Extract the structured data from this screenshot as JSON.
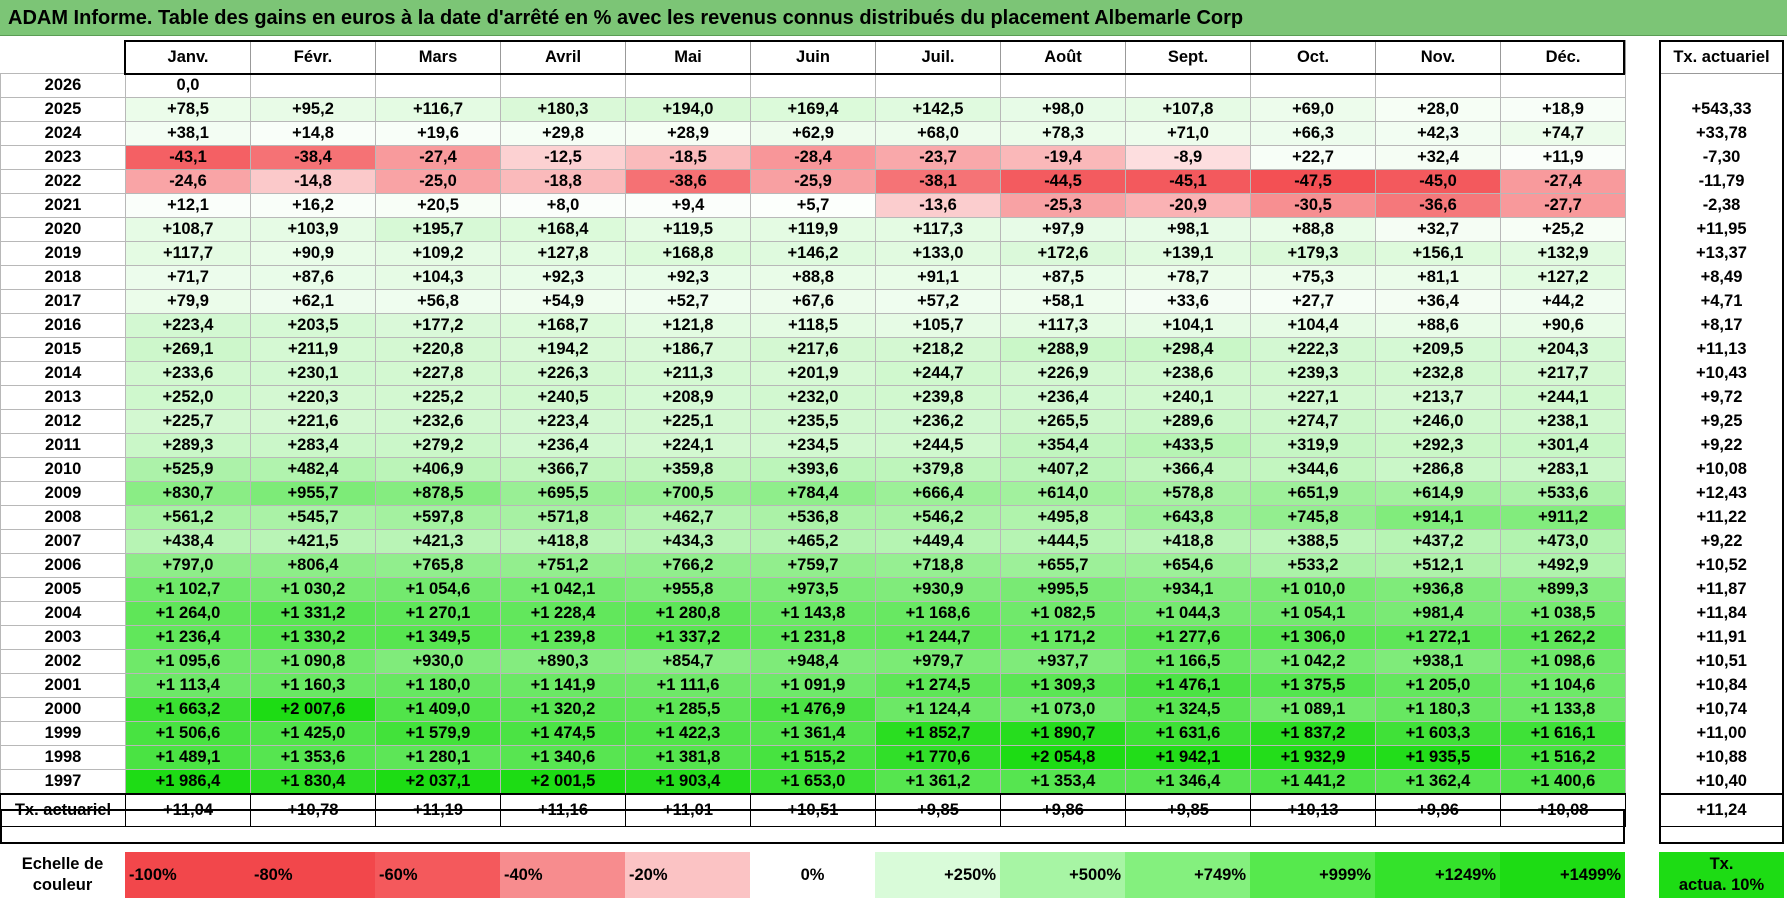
{
  "title": "ADAM Informe. Table des gains en euros à la date d'arrêté en % avec les revenus connus distribués du placement Albemarle Corp",
  "header": {
    "year_col": "",
    "months": [
      "Janv.",
      "Févr.",
      "Mars",
      "Avril",
      "Mai",
      "Juin",
      "Juil.",
      "Août",
      "Sept.",
      "Oct.",
      "Nov.",
      "Déc."
    ],
    "annual_label": "Tx. actuariel"
  },
  "rows": [
    {
      "year": "2026",
      "cells": [
        "0,0",
        "",
        "",
        "",
        "",
        "",
        "",
        "",
        "",
        "",
        "",
        ""
      ],
      "annual": ""
    },
    {
      "year": "2025",
      "cells": [
        "+78,5",
        "+95,2",
        "+116,7",
        "+180,3",
        "+194,0",
        "+169,4",
        "+142,5",
        "+98,0",
        "+107,8",
        "+69,0",
        "+28,0",
        "+18,9"
      ],
      "annual": "+543,33"
    },
    {
      "year": "2024",
      "cells": [
        "+38,1",
        "+14,8",
        "+19,6",
        "+29,8",
        "+28,9",
        "+62,9",
        "+68,0",
        "+78,3",
        "+71,0",
        "+66,3",
        "+42,3",
        "+74,7"
      ],
      "annual": "+33,78"
    },
    {
      "year": "2023",
      "cells": [
        "-43,1",
        "-38,4",
        "-27,4",
        "-12,5",
        "-18,5",
        "-28,4",
        "-23,7",
        "-19,4",
        "-8,9",
        "+22,7",
        "+32,4",
        "+11,9"
      ],
      "annual": "-7,30"
    },
    {
      "year": "2022",
      "cells": [
        "-24,6",
        "-14,8",
        "-25,0",
        "-18,8",
        "-38,6",
        "-25,9",
        "-38,1",
        "-44,5",
        "-45,1",
        "-47,5",
        "-45,0",
        "-27,4"
      ],
      "annual": "-11,79"
    },
    {
      "year": "2021",
      "cells": [
        "+12,1",
        "+16,2",
        "+20,5",
        "+8,0",
        "+9,4",
        "+5,7",
        "-13,6",
        "-25,3",
        "-20,9",
        "-30,5",
        "-36,6",
        "-27,7"
      ],
      "annual": "-2,38"
    },
    {
      "year": "2020",
      "cells": [
        "+108,7",
        "+103,9",
        "+195,7",
        "+168,4",
        "+119,5",
        "+119,9",
        "+117,3",
        "+97,9",
        "+98,1",
        "+88,8",
        "+32,7",
        "+25,2"
      ],
      "annual": "+11,95"
    },
    {
      "year": "2019",
      "cells": [
        "+117,7",
        "+90,9",
        "+109,2",
        "+127,8",
        "+168,8",
        "+146,2",
        "+133,0",
        "+172,6",
        "+139,1",
        "+179,3",
        "+156,1",
        "+132,9"
      ],
      "annual": "+13,37"
    },
    {
      "year": "2018",
      "cells": [
        "+71,7",
        "+87,6",
        "+104,3",
        "+92,3",
        "+92,3",
        "+88,8",
        "+91,1",
        "+87,5",
        "+78,7",
        "+75,3",
        "+81,1",
        "+127,2"
      ],
      "annual": "+8,49"
    },
    {
      "year": "2017",
      "cells": [
        "+79,9",
        "+62,1",
        "+56,8",
        "+54,9",
        "+52,7",
        "+67,6",
        "+57,2",
        "+58,1",
        "+33,6",
        "+27,7",
        "+36,4",
        "+44,2"
      ],
      "annual": "+4,71"
    },
    {
      "year": "2016",
      "cells": [
        "+223,4",
        "+203,5",
        "+177,2",
        "+168,7",
        "+121,8",
        "+118,5",
        "+105,7",
        "+117,3",
        "+104,1",
        "+104,4",
        "+88,6",
        "+90,6"
      ],
      "annual": "+8,17"
    },
    {
      "year": "2015",
      "cells": [
        "+269,1",
        "+211,9",
        "+220,8",
        "+194,2",
        "+186,7",
        "+217,6",
        "+218,2",
        "+288,9",
        "+298,4",
        "+222,3",
        "+209,5",
        "+204,3"
      ],
      "annual": "+11,13"
    },
    {
      "year": "2014",
      "cells": [
        "+233,6",
        "+230,1",
        "+227,8",
        "+226,3",
        "+211,3",
        "+201,9",
        "+244,7",
        "+226,9",
        "+238,6",
        "+239,3",
        "+232,8",
        "+217,7"
      ],
      "annual": "+10,43"
    },
    {
      "year": "2013",
      "cells": [
        "+252,0",
        "+220,3",
        "+225,2",
        "+240,5",
        "+208,9",
        "+232,0",
        "+239,8",
        "+236,4",
        "+240,1",
        "+227,1",
        "+213,7",
        "+244,1"
      ],
      "annual": "+9,72"
    },
    {
      "year": "2012",
      "cells": [
        "+225,7",
        "+221,6",
        "+232,6",
        "+223,4",
        "+225,1",
        "+235,5",
        "+236,2",
        "+265,5",
        "+289,6",
        "+274,7",
        "+246,0",
        "+238,1"
      ],
      "annual": "+9,25"
    },
    {
      "year": "2011",
      "cells": [
        "+289,3",
        "+283,4",
        "+279,2",
        "+236,4",
        "+224,1",
        "+234,5",
        "+244,5",
        "+354,4",
        "+433,5",
        "+319,9",
        "+292,3",
        "+301,4"
      ],
      "annual": "+9,22"
    },
    {
      "year": "2010",
      "cells": [
        "+525,9",
        "+482,4",
        "+406,9",
        "+366,7",
        "+359,8",
        "+393,6",
        "+379,8",
        "+407,2",
        "+366,4",
        "+344,6",
        "+286,8",
        "+283,1"
      ],
      "annual": "+10,08"
    },
    {
      "year": "2009",
      "cells": [
        "+830,7",
        "+955,7",
        "+878,5",
        "+695,5",
        "+700,5",
        "+784,4",
        "+666,4",
        "+614,0",
        "+578,8",
        "+651,9",
        "+614,9",
        "+533,6"
      ],
      "annual": "+12,43"
    },
    {
      "year": "2008",
      "cells": [
        "+561,2",
        "+545,7",
        "+597,8",
        "+571,8",
        "+462,7",
        "+536,8",
        "+546,2",
        "+495,8",
        "+643,8",
        "+745,8",
        "+914,1",
        "+911,2"
      ],
      "annual": "+11,22"
    },
    {
      "year": "2007",
      "cells": [
        "+438,4",
        "+421,5",
        "+421,3",
        "+418,8",
        "+434,3",
        "+465,2",
        "+449,4",
        "+444,5",
        "+418,8",
        "+388,5",
        "+437,2",
        "+473,0"
      ],
      "annual": "+9,22"
    },
    {
      "year": "2006",
      "cells": [
        "+797,0",
        "+806,4",
        "+765,8",
        "+751,2",
        "+766,2",
        "+759,7",
        "+718,8",
        "+655,7",
        "+654,6",
        "+533,2",
        "+512,1",
        "+492,9"
      ],
      "annual": "+10,52"
    },
    {
      "year": "2005",
      "cells": [
        "+1 102,7",
        "+1 030,2",
        "+1 054,6",
        "+1 042,1",
        "+955,8",
        "+973,5",
        "+930,9",
        "+995,5",
        "+934,1",
        "+1 010,0",
        "+936,8",
        "+899,3"
      ],
      "annual": "+11,87"
    },
    {
      "year": "2004",
      "cells": [
        "+1 264,0",
        "+1 331,2",
        "+1 270,1",
        "+1 228,4",
        "+1 280,8",
        "+1 143,8",
        "+1 168,6",
        "+1 082,5",
        "+1 044,3",
        "+1 054,1",
        "+981,4",
        "+1 038,5"
      ],
      "annual": "+11,84"
    },
    {
      "year": "2003",
      "cells": [
        "+1 236,4",
        "+1 330,2",
        "+1 349,5",
        "+1 239,8",
        "+1 337,2",
        "+1 231,8",
        "+1 244,7",
        "+1 171,2",
        "+1 277,6",
        "+1 306,0",
        "+1 272,1",
        "+1 262,2"
      ],
      "annual": "+11,91"
    },
    {
      "year": "2002",
      "cells": [
        "+1 095,6",
        "+1 090,8",
        "+930,0",
        "+890,3",
        "+854,7",
        "+948,4",
        "+979,7",
        "+937,7",
        "+1 166,5",
        "+1 042,2",
        "+938,1",
        "+1 098,6"
      ],
      "annual": "+10,51"
    },
    {
      "year": "2001",
      "cells": [
        "+1 113,4",
        "+1 160,3",
        "+1 180,0",
        "+1 141,9",
        "+1 111,6",
        "+1 091,9",
        "+1 274,5",
        "+1 309,3",
        "+1 476,1",
        "+1 375,5",
        "+1 205,0",
        "+1 104,6"
      ],
      "annual": "+10,84"
    },
    {
      "year": "2000",
      "cells": [
        "+1 663,2",
        "+2 007,6",
        "+1 409,0",
        "+1 320,2",
        "+1 285,5",
        "+1 476,9",
        "+1 124,4",
        "+1 073,0",
        "+1 324,5",
        "+1 089,1",
        "+1 180,3",
        "+1 133,8"
      ],
      "annual": "+10,74"
    },
    {
      "year": "1999",
      "cells": [
        "+1 506,6",
        "+1 425,0",
        "+1 579,9",
        "+1 474,5",
        "+1 422,3",
        "+1 361,4",
        "+1 852,7",
        "+1 890,7",
        "+1 631,6",
        "+1 837,2",
        "+1 603,3",
        "+1 616,1"
      ],
      "annual": "+11,00"
    },
    {
      "year": "1998",
      "cells": [
        "+1 489,1",
        "+1 353,6",
        "+1 280,1",
        "+1 340,6",
        "+1 381,8",
        "+1 515,2",
        "+1 770,6",
        "+2 054,8",
        "+1 942,1",
        "+1 932,9",
        "+1 935,5",
        "+1 516,2"
      ],
      "annual": "+10,88"
    },
    {
      "year": "1997",
      "cells": [
        "+1 986,4",
        "+1 830,4",
        "+2 037,1",
        "+2 001,5",
        "+1 903,4",
        "+1 653,0",
        "+1 361,2",
        "+1 353,4",
        "+1 346,4",
        "+1 441,2",
        "+1 362,4",
        "+1 400,6"
      ],
      "annual": "+10,40"
    }
  ],
  "footer": {
    "label": "Tx. actuariel",
    "cells": [
      "+11,04",
      "+10,78",
      "+11,19",
      "+11,16",
      "+11,01",
      "+10,51",
      "+9,85",
      "+9,86",
      "+9,85",
      "+10,13",
      "+9,96",
      "+10,08"
    ],
    "annual": "+11,24"
  },
  "scale": {
    "label_line1": "Echelle de",
    "label_line2": "couleur",
    "steps": [
      {
        "text": "-100%",
        "color": "#f2474b",
        "align": "left"
      },
      {
        "text": "-80%",
        "color": "#f2474b",
        "align": "left"
      },
      {
        "text": "-60%",
        "color": "#f4595c",
        "align": "left"
      },
      {
        "text": "-40%",
        "color": "#f78c8e",
        "align": "left"
      },
      {
        "text": "-20%",
        "color": "#fbc3c4",
        "align": "left"
      },
      {
        "text": "0%",
        "color": "#ffffff",
        "align": "center"
      },
      {
        "text": "+250%",
        "color": "#d9fbd9",
        "align": "right"
      },
      {
        "text": "+500%",
        "color": "#a7f5a4",
        "align": "right"
      },
      {
        "text": "+749%",
        "color": "#84f07e",
        "align": "right"
      },
      {
        "text": "+999%",
        "color": "#56e94d",
        "align": "right"
      },
      {
        "text": "+1249%",
        "color": "#34e22b",
        "align": "right"
      },
      {
        "text": "+1499%",
        "color": "#1ddc14",
        "align": "right"
      }
    ],
    "annual_line1": "Tx.",
    "annual_line2": "actua. 10%",
    "annual_color": "#1ddc14"
  },
  "colors": {
    "title_bg": "#7cc576",
    "neg_max": "#f2474b",
    "neutral": "#ffffff",
    "pos_max": "#1ddc14"
  }
}
